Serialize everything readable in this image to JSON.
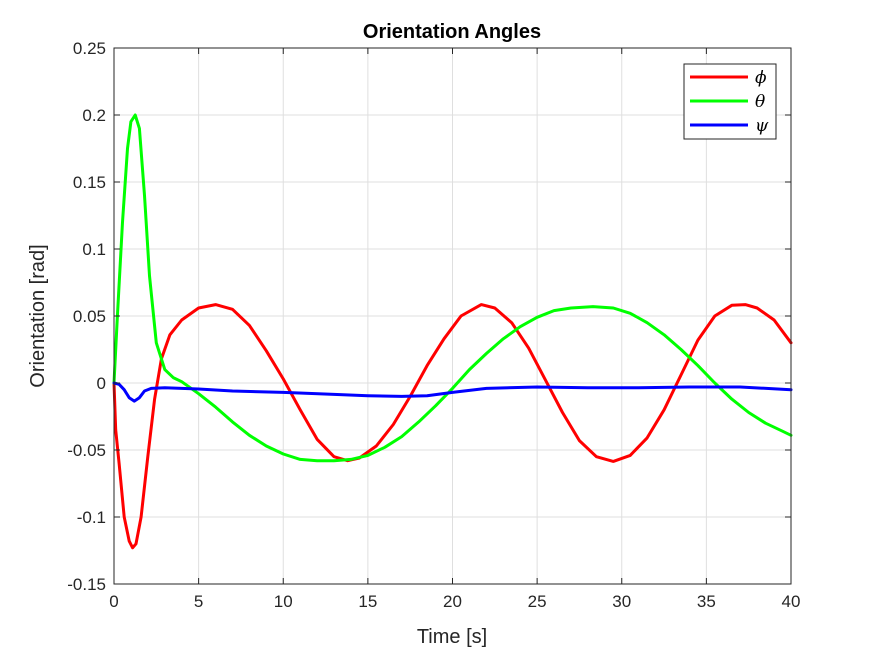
{
  "chart_data": {
    "type": "line",
    "title": "Orientation Angles",
    "xlabel": "Time [s]",
    "ylabel": "Orientation [rad]",
    "xlim": [
      0,
      40
    ],
    "ylim": [
      -0.15,
      0.25
    ],
    "grid": true,
    "legend_position": "top-right",
    "xticks": [
      0,
      5,
      10,
      15,
      20,
      25,
      30,
      35,
      40
    ],
    "xtick_labels": [
      "0",
      "5",
      "10",
      "15",
      "20",
      "25",
      "30",
      "35",
      "40"
    ],
    "yticks": [
      -0.15,
      -0.1,
      -0.05,
      0,
      0.05,
      0.1,
      0.15,
      0.2,
      0.25
    ],
    "ytick_labels": [
      "-0.15",
      "-0.1",
      "-0.05",
      "0",
      "0.05",
      "0.1",
      "0.15",
      "0.2",
      "0.25"
    ],
    "series": [
      {
        "name": "ϕ",
        "color": "#ff0000",
        "points": [
          [
            0,
            0
          ],
          [
            0.1,
            -0.035
          ],
          [
            0.3,
            -0.06
          ],
          [
            0.6,
            -0.1
          ],
          [
            0.9,
            -0.118
          ],
          [
            1.1,
            -0.123
          ],
          [
            1.3,
            -0.12
          ],
          [
            1.6,
            -0.1
          ],
          [
            2.0,
            -0.055
          ],
          [
            2.4,
            -0.012
          ],
          [
            2.8,
            0.018
          ],
          [
            3.3,
            0.036
          ],
          [
            4.0,
            0.047
          ],
          [
            5.0,
            0.056
          ],
          [
            6.0,
            0.0585
          ],
          [
            7.0,
            0.055
          ],
          [
            8.0,
            0.043
          ],
          [
            9.0,
            0.024
          ],
          [
            10.0,
            0.003
          ],
          [
            11.0,
            -0.02
          ],
          [
            12.0,
            -0.042
          ],
          [
            13.0,
            -0.055
          ],
          [
            13.8,
            -0.058
          ],
          [
            14.5,
            -0.056
          ],
          [
            15.5,
            -0.047
          ],
          [
            16.5,
            -0.031
          ],
          [
            17.5,
            -0.01
          ],
          [
            18.5,
            0.013
          ],
          [
            19.5,
            0.033
          ],
          [
            20.5,
            0.05
          ],
          [
            21.7,
            0.0585
          ],
          [
            22.5,
            0.056
          ],
          [
            23.5,
            0.045
          ],
          [
            24.5,
            0.026
          ],
          [
            25.5,
            0.002
          ],
          [
            26.5,
            -0.022
          ],
          [
            27.5,
            -0.043
          ],
          [
            28.5,
            -0.055
          ],
          [
            29.5,
            -0.0585
          ],
          [
            30.5,
            -0.054
          ],
          [
            31.5,
            -0.041
          ],
          [
            32.5,
            -0.02
          ],
          [
            33.5,
            0.006
          ],
          [
            34.5,
            0.032
          ],
          [
            35.5,
            0.05
          ],
          [
            36.5,
            0.058
          ],
          [
            37.3,
            0.0585
          ],
          [
            38.0,
            0.056
          ],
          [
            39.0,
            0.047
          ],
          [
            40.0,
            0.03
          ]
        ]
      },
      {
        "name": "θ",
        "color": "#00ff00",
        "points": [
          [
            0,
            0
          ],
          [
            0.2,
            0.05
          ],
          [
            0.5,
            0.12
          ],
          [
            0.8,
            0.175
          ],
          [
            1.0,
            0.195
          ],
          [
            1.25,
            0.2
          ],
          [
            1.5,
            0.19
          ],
          [
            1.8,
            0.14
          ],
          [
            2.1,
            0.08
          ],
          [
            2.5,
            0.03
          ],
          [
            3.0,
            0.01
          ],
          [
            3.5,
            0.004
          ],
          [
            4.0,
            0.001
          ],
          [
            5.0,
            -0.008
          ],
          [
            6.0,
            -0.018
          ],
          [
            7.0,
            -0.029
          ],
          [
            8.0,
            -0.039
          ],
          [
            9.0,
            -0.047
          ],
          [
            10.0,
            -0.053
          ],
          [
            11.0,
            -0.057
          ],
          [
            12.0,
            -0.058
          ],
          [
            13.0,
            -0.058
          ],
          [
            14.0,
            -0.057
          ],
          [
            15.0,
            -0.054
          ],
          [
            16.0,
            -0.048
          ],
          [
            17.0,
            -0.04
          ],
          [
            18.0,
            -0.029
          ],
          [
            19.0,
            -0.017
          ],
          [
            20.0,
            -0.004
          ],
          [
            21.0,
            0.01
          ],
          [
            22.0,
            0.022
          ],
          [
            23.0,
            0.033
          ],
          [
            24.0,
            0.042
          ],
          [
            25.0,
            0.049
          ],
          [
            26.0,
            0.054
          ],
          [
            27.0,
            0.056
          ],
          [
            28.3,
            0.057
          ],
          [
            29.5,
            0.056
          ],
          [
            30.5,
            0.052
          ],
          [
            31.5,
            0.045
          ],
          [
            32.5,
            0.036
          ],
          [
            33.5,
            0.025
          ],
          [
            34.5,
            0.013
          ],
          [
            35.5,
            0.0
          ],
          [
            36.5,
            -0.012
          ],
          [
            37.5,
            -0.022
          ],
          [
            38.5,
            -0.03
          ],
          [
            39.5,
            -0.036
          ],
          [
            40.0,
            -0.039
          ]
        ]
      },
      {
        "name": "ψ",
        "color": "#0000ff",
        "points": [
          [
            0,
            0
          ],
          [
            0.3,
            -0.001
          ],
          [
            0.6,
            -0.005
          ],
          [
            0.9,
            -0.011
          ],
          [
            1.2,
            -0.0135
          ],
          [
            1.5,
            -0.011
          ],
          [
            1.8,
            -0.006
          ],
          [
            2.2,
            -0.004
          ],
          [
            3.0,
            -0.0035
          ],
          [
            5.0,
            -0.0045
          ],
          [
            7.0,
            -0.006
          ],
          [
            10.0,
            -0.007
          ],
          [
            13.0,
            -0.0085
          ],
          [
            15.0,
            -0.0095
          ],
          [
            17.0,
            -0.01
          ],
          [
            18.5,
            -0.0095
          ],
          [
            20.0,
            -0.007
          ],
          [
            22.0,
            -0.004
          ],
          [
            25.0,
            -0.003
          ],
          [
            28.0,
            -0.0035
          ],
          [
            31.0,
            -0.0035
          ],
          [
            34.0,
            -0.003
          ],
          [
            37.0,
            -0.003
          ],
          [
            40.0,
            -0.005
          ]
        ]
      }
    ]
  }
}
